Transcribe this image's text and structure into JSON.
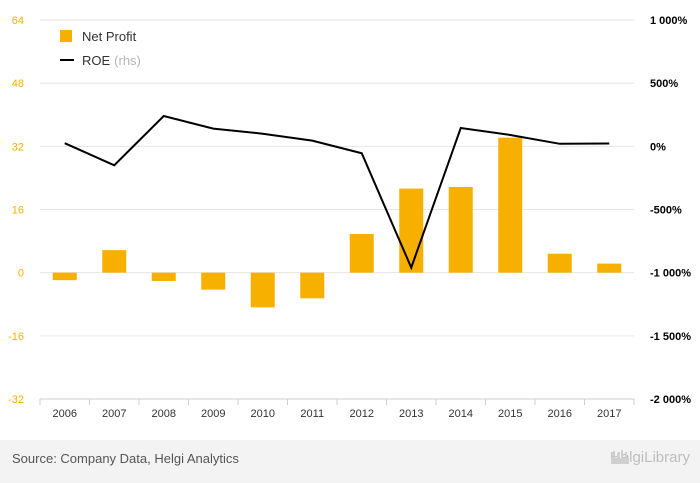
{
  "chart_data": {
    "type": "bar",
    "categories": [
      "2006",
      "2007",
      "2008",
      "2009",
      "2010",
      "2011",
      "2012",
      "2013",
      "2014",
      "2015",
      "2016",
      "2017"
    ],
    "series": [
      {
        "name": "Net Profit",
        "kind": "bar",
        "axis": "left",
        "color": "#f7b000",
        "values": [
          -1.9,
          5.7,
          -2.1,
          -4.3,
          -8.8,
          -6.5,
          9.8,
          21.3,
          21.7,
          34.2,
          4.8,
          2.3
        ]
      },
      {
        "name": "ROE",
        "kind": "line",
        "axis": "right",
        "color": "#000000",
        "values": [
          25,
          -150,
          240,
          140,
          100,
          45,
          -55,
          -960,
          145,
          90,
          20,
          22
        ]
      }
    ],
    "y_left": {
      "ylim": [
        -32,
        64
      ],
      "ticks": [
        "64",
        "48",
        "32",
        "16",
        "0",
        "-16",
        "-32"
      ],
      "tick_values": [
        64,
        48,
        32,
        16,
        0,
        -16,
        -32
      ]
    },
    "y_right": {
      "ylim": [
        -2000,
        1000
      ],
      "ticks": [
        "1 000%",
        "500%",
        "0%",
        "-500%",
        "-1 000%",
        "-1 500%",
        "-2 000%"
      ],
      "tick_values": [
        1000,
        500,
        0,
        -500,
        -1000,
        -1500,
        -2000
      ]
    },
    "legend_placement": "top-left",
    "grid": true,
    "title": "",
    "xlabel": "",
    "ylabel": ""
  },
  "legend": {
    "net_profit_label": "Net Profit",
    "roe_label": "ROE",
    "roe_suffix": "(rhs)"
  },
  "footer": {
    "source": "Source: Company Data, Helgi Analytics",
    "brand": "HelgiLibrary"
  },
  "colors": {
    "bar": "#f7b000",
    "line": "#000000",
    "left_tick": "#f7b000",
    "grid": "#e6e6e6"
  }
}
